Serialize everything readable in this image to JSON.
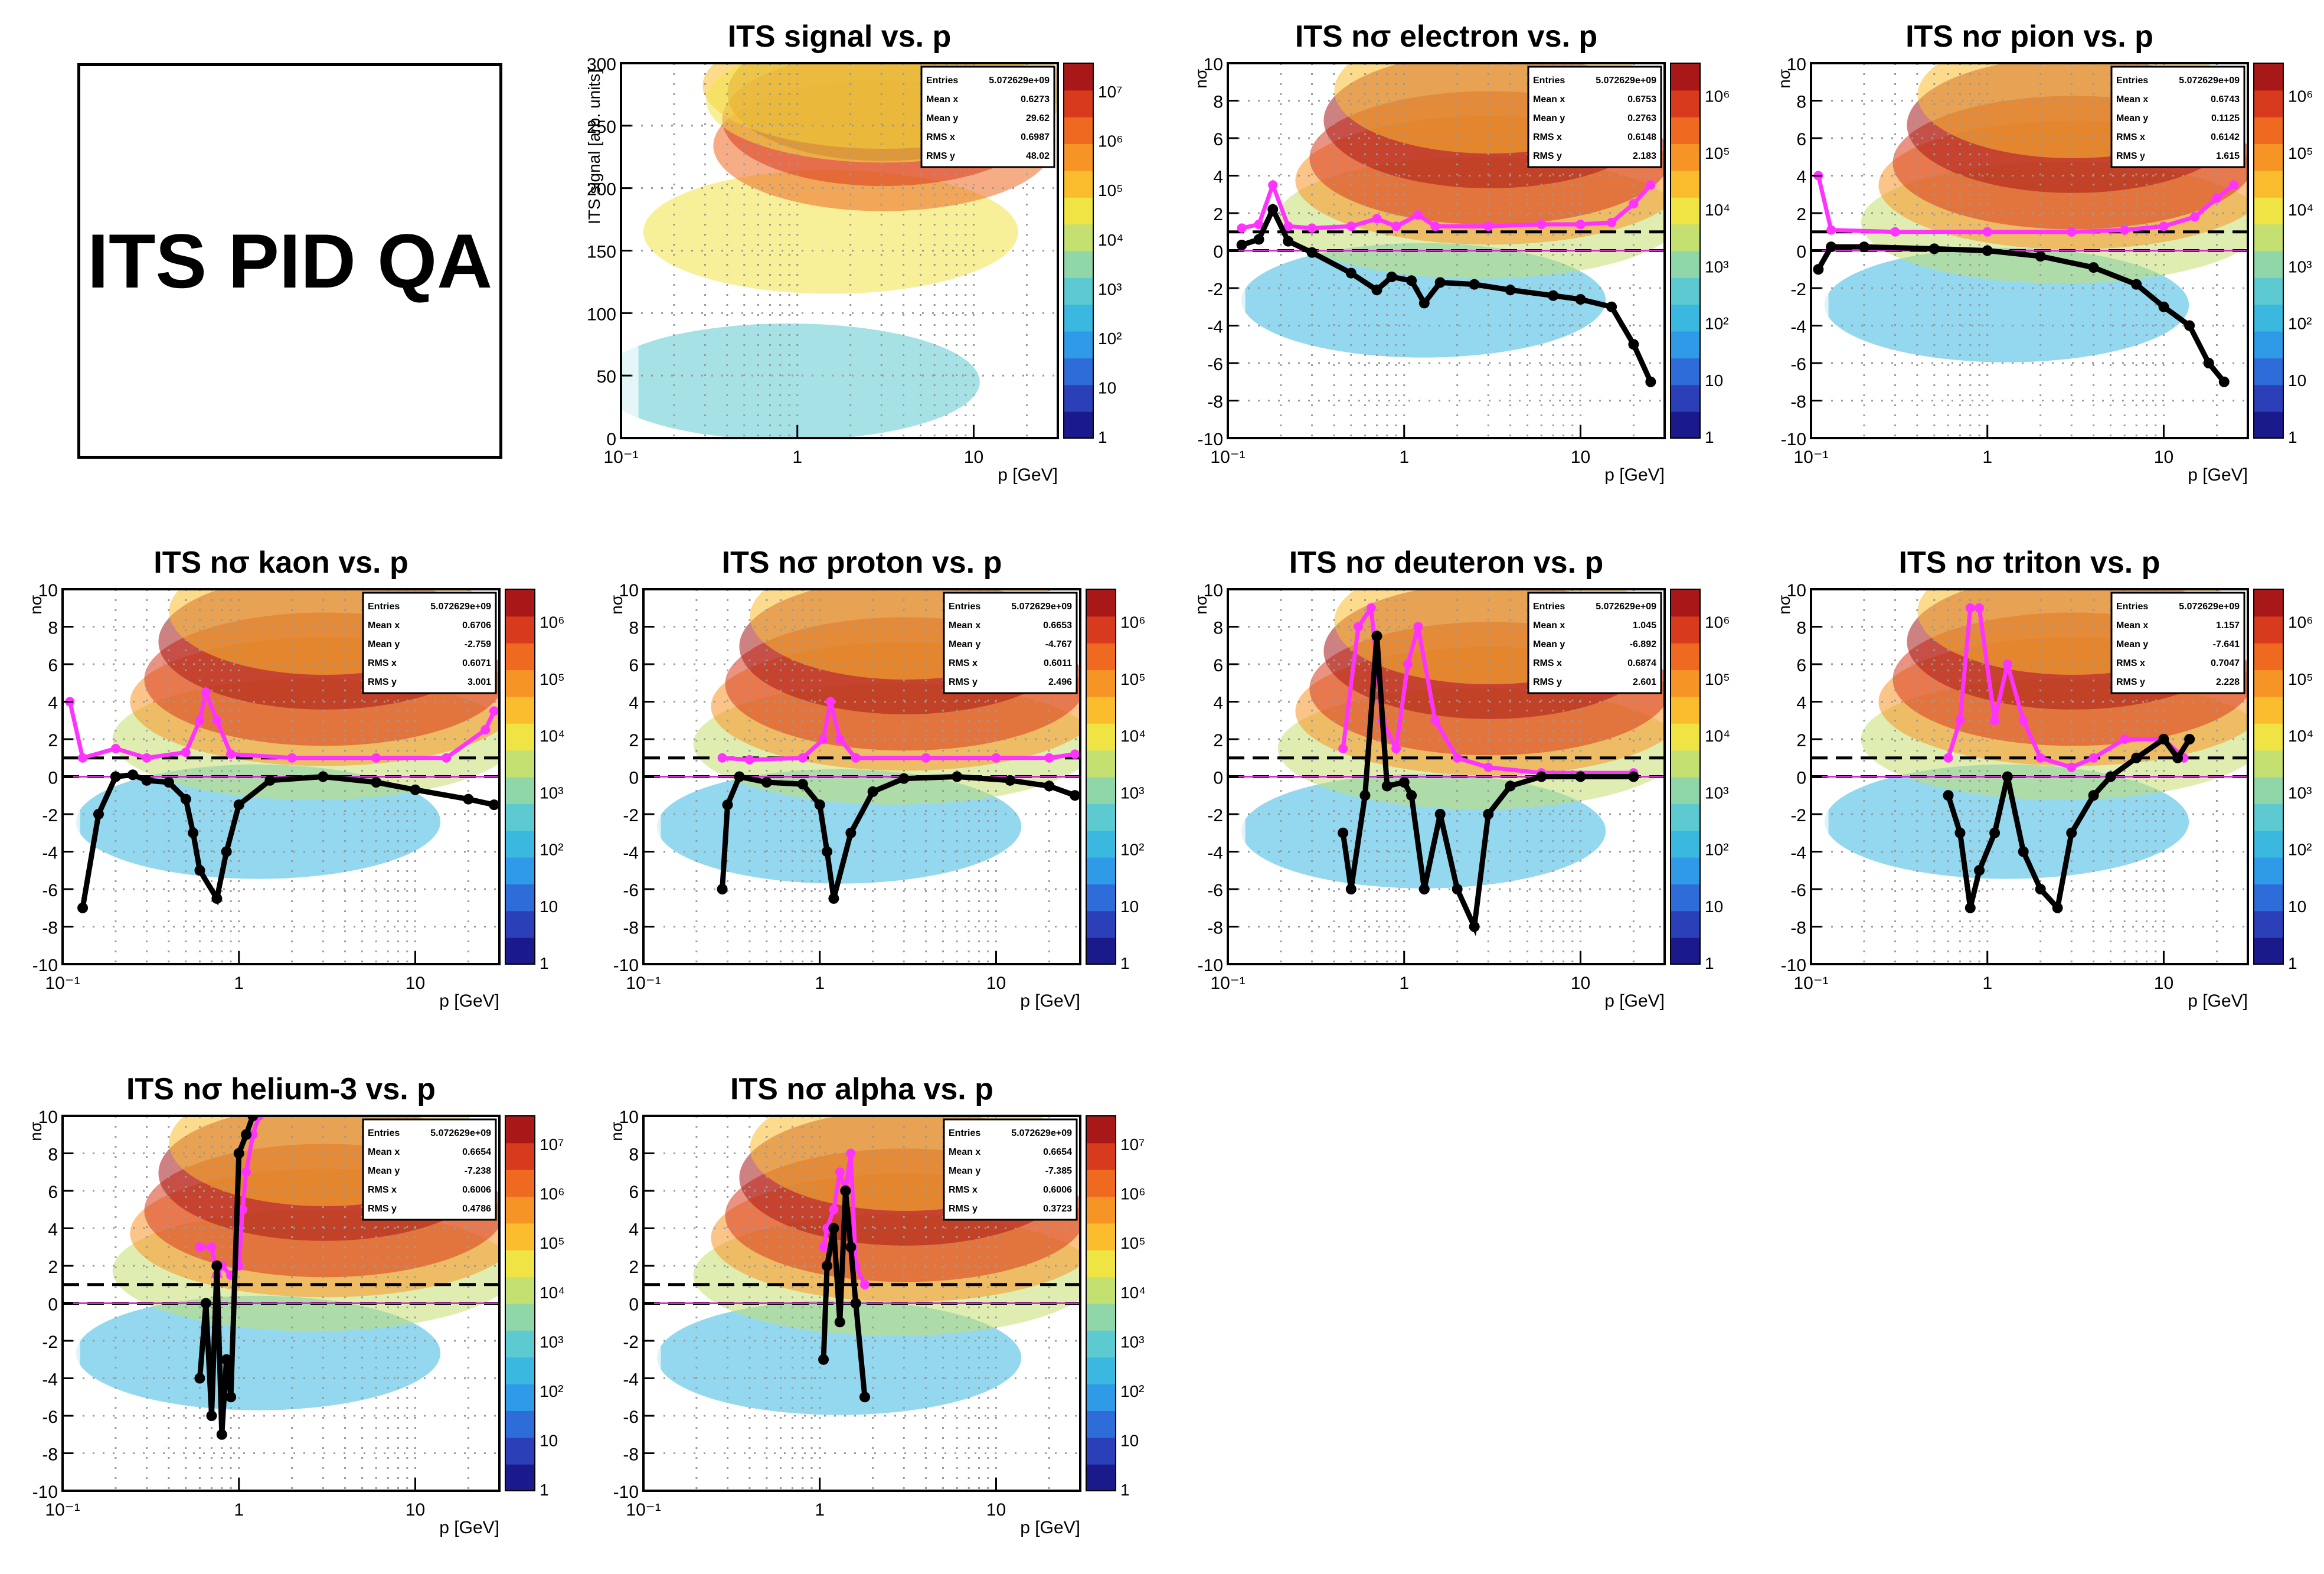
{
  "page_title": "ITS PID QA",
  "stats_labels": {
    "entries": "Entries",
    "mean_x": "Mean x",
    "mean_y": "Mean y",
    "rms_x": "RMS x",
    "rms_y": "RMS y"
  },
  "colors": {
    "marker_mean": "#000000",
    "marker_sigma": "#ff33ff",
    "contour": "#8c1a8c",
    "reference_line": "#000000",
    "zero_line": "#cc33cc"
  },
  "colorbar": [
    "#1a1a8c",
    "#2a3fb8",
    "#2e6dd9",
    "#2f9be8",
    "#3ab8e0",
    "#5ccad0",
    "#8fd6a8",
    "#c4e070",
    "#f0e445",
    "#fbbd2e",
    "#f79426",
    "#ef6a20",
    "#d83a1e",
    "#a81818"
  ],
  "chart_data": [
    {
      "type": "heatmap",
      "title": "ITS signal vs. p",
      "xlabel": "p [GeV]",
      "ylabel": "ITS signal [arb. units]",
      "xscale": "log",
      "xlim": [
        0.1,
        30
      ],
      "ylim": [
        0,
        300
      ],
      "x_ticks": [
        "10⁻¹",
        "1",
        "10"
      ],
      "y_ticks": [
        "0",
        "50",
        "100",
        "150",
        "200",
        "250",
        "300"
      ],
      "z_ticks": [
        "1",
        "10",
        "10²",
        "10³",
        "10⁴",
        "10⁵",
        "10⁶",
        "10⁷"
      ],
      "grid": true,
      "legend_position": "top-right",
      "stats": {
        "entries": "5.072629e+09",
        "mean_x": "0.6273",
        "mean_y": "29.62",
        "rms_x": "0.6987",
        "rms_y": "48.02"
      }
    },
    {
      "type": "heatmap",
      "title": "ITS nσ electron vs. p",
      "xlabel": "p [GeV]",
      "ylabel": "nσ",
      "xscale": "log",
      "xlim": [
        0.1,
        30
      ],
      "ylim": [
        -10,
        10
      ],
      "x_ticks": [
        "10⁻¹",
        "1",
        "10"
      ],
      "y_ticks": [
        "-10",
        "-8",
        "-6",
        "-4",
        "-2",
        "0",
        "2",
        "4",
        "6",
        "8",
        "10"
      ],
      "z_ticks": [
        "1",
        "10",
        "10²",
        "10³",
        "10⁴",
        "10⁵",
        "10⁶"
      ],
      "grid": true,
      "legend_position": "top-right",
      "stats": {
        "entries": "5.072629e+09",
        "mean_x": "0.6753",
        "mean_y": "0.2763",
        "rms_x": "0.6148",
        "rms_y": "2.183"
      },
      "mean_profile": [
        [
          0.12,
          0.3
        ],
        [
          0.15,
          0.6
        ],
        [
          0.18,
          2.2
        ],
        [
          0.22,
          0.5
        ],
        [
          0.3,
          -0.1
        ],
        [
          0.5,
          -1.2
        ],
        [
          0.7,
          -2.1
        ],
        [
          0.85,
          -1.4
        ],
        [
          1.1,
          -1.6
        ],
        [
          1.3,
          -2.8
        ],
        [
          1.6,
          -1.7
        ],
        [
          2.5,
          -1.8
        ],
        [
          4,
          -2.1
        ],
        [
          7,
          -2.4
        ],
        [
          10,
          -2.6
        ],
        [
          15,
          -3
        ],
        [
          20,
          -5
        ],
        [
          25,
          -7
        ]
      ],
      "sigma_profile": [
        [
          0.12,
          1.2
        ],
        [
          0.15,
          1.4
        ],
        [
          0.18,
          3.5
        ],
        [
          0.22,
          1.3
        ],
        [
          0.3,
          1.2
        ],
        [
          0.5,
          1.3
        ],
        [
          0.7,
          1.7
        ],
        [
          0.9,
          1.3
        ],
        [
          1.2,
          1.9
        ],
        [
          1.5,
          1.3
        ],
        [
          3,
          1.3
        ],
        [
          6,
          1.4
        ],
        [
          10,
          1.4
        ],
        [
          15,
          1.5
        ],
        [
          20,
          2.5
        ],
        [
          25,
          3.5
        ]
      ]
    },
    {
      "type": "heatmap",
      "title": "ITS nσ pion vs. p",
      "xlabel": "p [GeV]",
      "ylabel": "nσ",
      "xscale": "log",
      "xlim": [
        0.1,
        30
      ],
      "ylim": [
        -10,
        10
      ],
      "x_ticks": [
        "10⁻¹",
        "1",
        "10"
      ],
      "y_ticks": [
        "-10",
        "-8",
        "-6",
        "-4",
        "-2",
        "0",
        "2",
        "4",
        "6",
        "8",
        "10"
      ],
      "z_ticks": [
        "1",
        "10",
        "10²",
        "10³",
        "10⁴",
        "10⁵",
        "10⁶"
      ],
      "grid": true,
      "legend_position": "top-right",
      "stats": {
        "entries": "5.072629e+09",
        "mean_x": "0.6743",
        "mean_y": "0.1125",
        "rms_x": "0.6142",
        "rms_y": "1.615"
      },
      "mean_profile": [
        [
          0.11,
          -1
        ],
        [
          0.13,
          0.2
        ],
        [
          0.2,
          0.2
        ],
        [
          0.5,
          0.1
        ],
        [
          1,
          0
        ],
        [
          2,
          -0.3
        ],
        [
          4,
          -0.9
        ],
        [
          7,
          -1.8
        ],
        [
          10,
          -3
        ],
        [
          14,
          -4
        ],
        [
          18,
          -6
        ],
        [
          22,
          -7
        ]
      ],
      "sigma_profile": [
        [
          0.11,
          4
        ],
        [
          0.13,
          1.1
        ],
        [
          0.3,
          1
        ],
        [
          1,
          1
        ],
        [
          3,
          1
        ],
        [
          6,
          1.1
        ],
        [
          10,
          1.3
        ],
        [
          15,
          1.8
        ],
        [
          20,
          2.8
        ],
        [
          25,
          3.5
        ]
      ]
    },
    {
      "type": "heatmap",
      "title": "ITS nσ kaon vs. p",
      "xlabel": "p [GeV]",
      "ylabel": "nσ",
      "xscale": "log",
      "xlim": [
        0.1,
        30
      ],
      "ylim": [
        -10,
        10
      ],
      "x_ticks": [
        "10⁻¹",
        "1",
        "10"
      ],
      "y_ticks": [
        "-10",
        "-8",
        "-6",
        "-4",
        "-2",
        "0",
        "2",
        "4",
        "6",
        "8",
        "10"
      ],
      "z_ticks": [
        "1",
        "10",
        "10²",
        "10³",
        "10⁴",
        "10⁵",
        "10⁶"
      ],
      "grid": true,
      "legend_position": "top-right",
      "stats": {
        "entries": "5.072629e+09",
        "mean_x": "0.6706",
        "mean_y": "-2.759",
        "rms_x": "0.6071",
        "rms_y": "3.001"
      },
      "mean_profile": [
        [
          0.13,
          -7
        ],
        [
          0.16,
          -2
        ],
        [
          0.2,
          0
        ],
        [
          0.25,
          0.1
        ],
        [
          0.3,
          -0.2
        ],
        [
          0.4,
          -0.3
        ],
        [
          0.5,
          -1.2
        ],
        [
          0.55,
          -3
        ],
        [
          0.6,
          -5
        ],
        [
          0.75,
          -6.5
        ],
        [
          0.85,
          -4
        ],
        [
          1,
          -1.5
        ],
        [
          1.5,
          -0.2
        ],
        [
          3,
          0
        ],
        [
          6,
          -0.3
        ],
        [
          10,
          -0.7
        ],
        [
          20,
          -1.2
        ],
        [
          28,
          -1.5
        ]
      ],
      "sigma_profile": [
        [
          0.11,
          4
        ],
        [
          0.13,
          1
        ],
        [
          0.2,
          1.5
        ],
        [
          0.3,
          1
        ],
        [
          0.5,
          1.3
        ],
        [
          0.6,
          3
        ],
        [
          0.65,
          4.5
        ],
        [
          0.75,
          3
        ],
        [
          0.9,
          1.2
        ],
        [
          2,
          1
        ],
        [
          6,
          1
        ],
        [
          15,
          1
        ],
        [
          25,
          2.5
        ],
        [
          28,
          3.5
        ]
      ]
    },
    {
      "type": "heatmap",
      "title": "ITS nσ proton vs. p",
      "xlabel": "p [GeV]",
      "ylabel": "nσ",
      "xscale": "log",
      "xlim": [
        0.1,
        30
      ],
      "ylim": [
        -10,
        10
      ],
      "x_ticks": [
        "10⁻¹",
        "1",
        "10"
      ],
      "y_ticks": [
        "-10",
        "-8",
        "-6",
        "-4",
        "-2",
        "0",
        "2",
        "4",
        "6",
        "8",
        "10"
      ],
      "z_ticks": [
        "1",
        "10",
        "10²",
        "10³",
        "10⁴",
        "10⁵",
        "10⁶"
      ],
      "grid": true,
      "legend_position": "top-right",
      "stats": {
        "entries": "5.072629e+09",
        "mean_x": "0.6653",
        "mean_y": "-4.767",
        "rms_x": "0.6011",
        "rms_y": "2.496"
      },
      "mean_profile": [
        [
          0.28,
          -6
        ],
        [
          0.3,
          -1.5
        ],
        [
          0.35,
          0
        ],
        [
          0.5,
          -0.3
        ],
        [
          0.8,
          -0.4
        ],
        [
          1,
          -1.5
        ],
        [
          1.1,
          -4
        ],
        [
          1.2,
          -6.5
        ],
        [
          1.5,
          -3
        ],
        [
          2,
          -0.8
        ],
        [
          3,
          -0.1
        ],
        [
          6,
          0
        ],
        [
          12,
          -0.2
        ],
        [
          20,
          -0.5
        ],
        [
          28,
          -1
        ]
      ],
      "sigma_profile": [
        [
          0.28,
          1
        ],
        [
          0.4,
          0.9
        ],
        [
          0.8,
          1
        ],
        [
          1.05,
          2
        ],
        [
          1.15,
          4
        ],
        [
          1.3,
          2
        ],
        [
          1.6,
          1
        ],
        [
          4,
          1
        ],
        [
          10,
          1
        ],
        [
          20,
          1
        ],
        [
          28,
          1.2
        ]
      ]
    },
    {
      "type": "heatmap",
      "title": "ITS nσ deuteron vs. p",
      "xlabel": "p [GeV]",
      "ylabel": "nσ",
      "xscale": "log",
      "xlim": [
        0.1,
        30
      ],
      "ylim": [
        -10,
        10
      ],
      "x_ticks": [
        "10⁻¹",
        "1",
        "10"
      ],
      "y_ticks": [
        "-10",
        "-8",
        "-6",
        "-4",
        "-2",
        "0",
        "2",
        "4",
        "6",
        "8",
        "10"
      ],
      "z_ticks": [
        "1",
        "10",
        "10²",
        "10³",
        "10⁴",
        "10⁵",
        "10⁶"
      ],
      "grid": true,
      "legend_position": "top-right",
      "stats": {
        "entries": "5.072629e+09",
        "mean_x": "1.045",
        "mean_y": "-6.892",
        "rms_x": "0.6874",
        "rms_y": "2.601"
      },
      "mean_profile": [
        [
          0.45,
          -3
        ],
        [
          0.5,
          -6
        ],
        [
          0.6,
          -1
        ],
        [
          0.7,
          7.5
        ],
        [
          0.8,
          -0.5
        ],
        [
          1,
          -0.3
        ],
        [
          1.1,
          -1
        ],
        [
          1.3,
          -6
        ],
        [
          1.6,
          -2
        ],
        [
          2,
          -6
        ],
        [
          2.5,
          -8
        ],
        [
          3,
          -2
        ],
        [
          4,
          -0.5
        ],
        [
          6,
          0
        ],
        [
          10,
          0
        ],
        [
          20,
          0
        ]
      ],
      "sigma_profile": [
        [
          0.45,
          1.5
        ],
        [
          0.55,
          8
        ],
        [
          0.65,
          9
        ],
        [
          0.75,
          3
        ],
        [
          0.9,
          1.5
        ],
        [
          1.05,
          6
        ],
        [
          1.2,
          8
        ],
        [
          1.5,
          3
        ],
        [
          2,
          1
        ],
        [
          3,
          0.5
        ],
        [
          6,
          0.2
        ],
        [
          20,
          0.2
        ]
      ]
    },
    {
      "type": "heatmap",
      "title": "ITS nσ triton vs. p",
      "xlabel": "p [GeV]",
      "ylabel": "nσ",
      "xscale": "log",
      "xlim": [
        0.1,
        30
      ],
      "ylim": [
        -10,
        10
      ],
      "x_ticks": [
        "10⁻¹",
        "1",
        "10"
      ],
      "y_ticks": [
        "-10",
        "-8",
        "-6",
        "-4",
        "-2",
        "0",
        "2",
        "4",
        "6",
        "8",
        "10"
      ],
      "z_ticks": [
        "1",
        "10",
        "10²",
        "10³",
        "10⁴",
        "10⁵",
        "10⁶"
      ],
      "grid": true,
      "legend_position": "top-right",
      "stats": {
        "entries": "5.072629e+09",
        "mean_x": "1.157",
        "mean_y": "-7.641",
        "rms_x": "0.7047",
        "rms_y": "2.228"
      },
      "mean_profile": [
        [
          0.6,
          -1
        ],
        [
          0.7,
          -3
        ],
        [
          0.8,
          -7
        ],
        [
          0.9,
          -5
        ],
        [
          1.1,
          -3
        ],
        [
          1.3,
          0
        ],
        [
          1.6,
          -4
        ],
        [
          2,
          -6
        ],
        [
          2.5,
          -7
        ],
        [
          3,
          -3
        ],
        [
          4,
          -1
        ],
        [
          5,
          0
        ],
        [
          7,
          1
        ],
        [
          10,
          2
        ],
        [
          12,
          1
        ],
        [
          14,
          2
        ]
      ],
      "sigma_profile": [
        [
          0.6,
          1
        ],
        [
          0.7,
          3
        ],
        [
          0.8,
          9
        ],
        [
          0.9,
          9
        ],
        [
          1.1,
          3
        ],
        [
          1.3,
          6
        ],
        [
          1.6,
          3
        ],
        [
          2,
          1
        ],
        [
          3,
          0.5
        ],
        [
          4,
          1
        ],
        [
          6,
          2
        ],
        [
          10,
          2
        ],
        [
          13,
          1
        ]
      ]
    },
    {
      "type": "heatmap",
      "title": "ITS nσ helium-3 vs. p",
      "xlabel": "p [GeV]",
      "ylabel": "nσ",
      "xscale": "log",
      "xlim": [
        0.1,
        30
      ],
      "ylim": [
        -10,
        10
      ],
      "x_ticks": [
        "10⁻¹",
        "1",
        "10"
      ],
      "y_ticks": [
        "-10",
        "-8",
        "-6",
        "-4",
        "-2",
        "0",
        "2",
        "4",
        "6",
        "8",
        "10"
      ],
      "z_ticks": [
        "1",
        "10",
        "10²",
        "10³",
        "10⁴",
        "10⁵",
        "10⁶",
        "10⁷"
      ],
      "grid": true,
      "legend_position": "top-right",
      "stats": {
        "entries": "5.072629e+09",
        "mean_x": "0.6654",
        "mean_y": "-7.238",
        "rms_x": "0.6006",
        "rms_y": "0.4786"
      },
      "mean_profile": [
        [
          0.6,
          -4
        ],
        [
          0.65,
          0
        ],
        [
          0.7,
          -6
        ],
        [
          0.75,
          2
        ],
        [
          0.8,
          -7
        ],
        [
          0.85,
          -3
        ],
        [
          0.9,
          -5
        ],
        [
          1,
          8
        ],
        [
          1.1,
          9
        ],
        [
          1.2,
          10
        ]
      ],
      "sigma_profile": [
        [
          0.6,
          3
        ],
        [
          0.7,
          3
        ],
        [
          0.75,
          1.5
        ],
        [
          0.8,
          2
        ],
        [
          0.9,
          1.5
        ],
        [
          1,
          2
        ],
        [
          1.05,
          5
        ],
        [
          1.1,
          7
        ],
        [
          1.2,
          9
        ],
        [
          1.3,
          10
        ]
      ]
    },
    {
      "type": "heatmap",
      "title": "ITS nσ alpha vs. p",
      "xlabel": "p [GeV]",
      "ylabel": "nσ",
      "xscale": "log",
      "xlim": [
        0.1,
        30
      ],
      "ylim": [
        -10,
        10
      ],
      "x_ticks": [
        "10⁻¹",
        "1",
        "10"
      ],
      "y_ticks": [
        "-10",
        "-8",
        "-6",
        "-4",
        "-2",
        "0",
        "2",
        "4",
        "6",
        "8",
        "10"
      ],
      "z_ticks": [
        "1",
        "10",
        "10²",
        "10³",
        "10⁴",
        "10⁵",
        "10⁶",
        "10⁷"
      ],
      "grid": true,
      "legend_position": "top-right",
      "stats": {
        "entries": "5.072629e+09",
        "mean_x": "0.6654",
        "mean_y": "-7.385",
        "rms_x": "0.6006",
        "rms_y": "0.3723"
      },
      "mean_profile": [
        [
          1.05,
          -3
        ],
        [
          1.1,
          2
        ],
        [
          1.2,
          4
        ],
        [
          1.3,
          -1
        ],
        [
          1.4,
          6
        ],
        [
          1.5,
          3
        ],
        [
          1.6,
          0
        ],
        [
          1.8,
          -5
        ]
      ],
      "sigma_profile": [
        [
          1.05,
          3
        ],
        [
          1.1,
          4
        ],
        [
          1.2,
          5
        ],
        [
          1.3,
          7
        ],
        [
          1.4,
          6
        ],
        [
          1.5,
          8
        ],
        [
          1.6,
          2
        ],
        [
          1.8,
          1
        ]
      ]
    }
  ]
}
